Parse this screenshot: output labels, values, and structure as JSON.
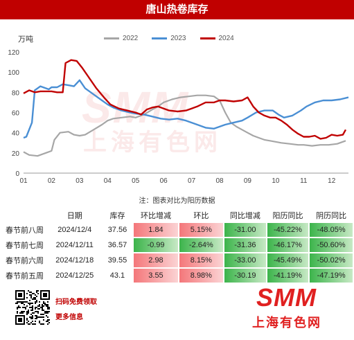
{
  "title": "唐山热卷库存",
  "unit": "万吨",
  "note": "注：图表对比为阳历数据",
  "chart_data": {
    "type": "line",
    "x_ticks": [
      "01",
      "02",
      "03",
      "04",
      "05",
      "06",
      "07",
      "08",
      "09",
      "10",
      "11",
      "12"
    ],
    "y_ticks": [
      "0",
      "20",
      "40",
      "60",
      "80",
      "100",
      "120"
    ],
    "ylim": [
      0,
      120
    ],
    "grid": false,
    "legend_position": "top",
    "series": [
      {
        "name": "2022",
        "color": "#a6a6a6",
        "values": [
          [
            1.0,
            21
          ],
          [
            1.2,
            18
          ],
          [
            1.5,
            17
          ],
          [
            1.8,
            20
          ],
          [
            2.0,
            22
          ],
          [
            2.1,
            33
          ],
          [
            2.3,
            40
          ],
          [
            2.6,
            41
          ],
          [
            2.8,
            38
          ],
          [
            3.0,
            37
          ],
          [
            3.2,
            38
          ],
          [
            3.5,
            43
          ],
          [
            3.8,
            48
          ],
          [
            4.0,
            52
          ],
          [
            4.2,
            54
          ],
          [
            4.5,
            55
          ],
          [
            4.8,
            56
          ],
          [
            5.0,
            55
          ],
          [
            5.3,
            58
          ],
          [
            5.6,
            63
          ],
          [
            5.8,
            66
          ],
          [
            6.0,
            70
          ],
          [
            6.3,
            73
          ],
          [
            6.6,
            75
          ],
          [
            6.9,
            76
          ],
          [
            7.2,
            77
          ],
          [
            7.5,
            77
          ],
          [
            7.8,
            76
          ],
          [
            8.0,
            72
          ],
          [
            8.2,
            60
          ],
          [
            8.4,
            50
          ],
          [
            8.6,
            46
          ],
          [
            8.8,
            43
          ],
          [
            9.0,
            40
          ],
          [
            9.2,
            37
          ],
          [
            9.4,
            35
          ],
          [
            9.6,
            33
          ],
          [
            9.8,
            32
          ],
          [
            10.0,
            31
          ],
          [
            10.2,
            30
          ],
          [
            10.5,
            29
          ],
          [
            10.8,
            28
          ],
          [
            11.0,
            28
          ],
          [
            11.3,
            27
          ],
          [
            11.6,
            28
          ],
          [
            11.9,
            28
          ],
          [
            12.2,
            29
          ],
          [
            12.5,
            32
          ]
        ]
      },
      {
        "name": "2023",
        "color": "#4a8fd4",
        "values": [
          [
            1.0,
            35
          ],
          [
            1.1,
            36
          ],
          [
            1.3,
            50
          ],
          [
            1.4,
            82
          ],
          [
            1.6,
            86
          ],
          [
            1.8,
            84
          ],
          [
            1.9,
            83
          ],
          [
            2.0,
            85
          ],
          [
            2.2,
            85
          ],
          [
            2.4,
            88
          ],
          [
            2.6,
            87
          ],
          [
            2.8,
            86
          ],
          [
            3.0,
            92
          ],
          [
            3.2,
            84
          ],
          [
            3.5,
            78
          ],
          [
            3.8,
            72
          ],
          [
            4.0,
            68
          ],
          [
            4.2,
            65
          ],
          [
            4.5,
            62
          ],
          [
            4.8,
            60
          ],
          [
            5.0,
            59
          ],
          [
            5.3,
            58
          ],
          [
            5.6,
            56
          ],
          [
            5.9,
            54
          ],
          [
            6.2,
            53
          ],
          [
            6.5,
            54
          ],
          [
            6.8,
            52
          ],
          [
            7.0,
            50
          ],
          [
            7.2,
            48
          ],
          [
            7.5,
            45
          ],
          [
            7.8,
            44
          ],
          [
            8.0,
            46
          ],
          [
            8.2,
            48
          ],
          [
            8.5,
            50
          ],
          [
            8.8,
            52
          ],
          [
            9.0,
            55
          ],
          [
            9.3,
            60
          ],
          [
            9.6,
            62
          ],
          [
            9.9,
            62
          ],
          [
            10.1,
            58
          ],
          [
            10.3,
            55
          ],
          [
            10.6,
            57
          ],
          [
            10.9,
            62
          ],
          [
            11.1,
            66
          ],
          [
            11.4,
            70
          ],
          [
            11.7,
            72
          ],
          [
            12.0,
            72
          ],
          [
            12.3,
            73
          ],
          [
            12.6,
            75
          ]
        ]
      },
      {
        "name": "2024",
        "color": "#c00000",
        "values": [
          [
            1.0,
            79
          ],
          [
            1.2,
            82
          ],
          [
            1.4,
            80
          ],
          [
            1.6,
            81
          ],
          [
            1.8,
            81
          ],
          [
            2.0,
            81
          ],
          [
            2.2,
            80
          ],
          [
            2.4,
            80
          ],
          [
            2.5,
            109
          ],
          [
            2.7,
            112
          ],
          [
            2.9,
            111
          ],
          [
            3.1,
            104
          ],
          [
            3.3,
            96
          ],
          [
            3.6,
            84
          ],
          [
            3.9,
            74
          ],
          [
            4.1,
            68
          ],
          [
            4.4,
            64
          ],
          [
            4.7,
            62
          ],
          [
            5.0,
            60
          ],
          [
            5.2,
            58
          ],
          [
            5.4,
            63
          ],
          [
            5.6,
            65
          ],
          [
            5.8,
            66
          ],
          [
            6.0,
            64
          ],
          [
            6.2,
            62
          ],
          [
            6.5,
            61
          ],
          [
            6.8,
            62
          ],
          [
            7.0,
            64
          ],
          [
            7.2,
            66
          ],
          [
            7.5,
            70
          ],
          [
            7.8,
            70
          ],
          [
            8.0,
            72
          ],
          [
            8.2,
            72
          ],
          [
            8.5,
            71
          ],
          [
            8.8,
            72
          ],
          [
            9.0,
            75
          ],
          [
            9.2,
            66
          ],
          [
            9.4,
            60
          ],
          [
            9.6,
            57
          ],
          [
            9.8,
            55
          ],
          [
            10.0,
            55
          ],
          [
            10.2,
            52
          ],
          [
            10.4,
            48
          ],
          [
            10.6,
            43
          ],
          [
            10.8,
            39
          ],
          [
            11.0,
            36
          ],
          [
            11.2,
            36
          ],
          [
            11.4,
            37
          ],
          [
            11.6,
            34
          ],
          [
            11.8,
            35
          ],
          [
            12.0,
            38
          ],
          [
            12.2,
            37
          ],
          [
            12.4,
            38
          ],
          [
            12.5,
            43
          ]
        ]
      }
    ]
  },
  "watermark": {
    "en": "SMM",
    "cn": "上海有色网"
  },
  "table": {
    "headers": [
      "",
      "日期",
      "库存",
      "环比增减",
      "环比",
      "同比增减",
      "阳历同比",
      "阴历同比"
    ],
    "rows": [
      {
        "label": "春节前八周",
        "date": "2024/12/4",
        "stock": "37.56",
        "chg": "1.84",
        "pct": "5.15%",
        "yoy_chg": "-31.00",
        "yoy_solar": "-45.22%",
        "yoy_lunar": "-48.05%",
        "up": true
      },
      {
        "label": "春节前七周",
        "date": "2024/12/11",
        "stock": "36.57",
        "chg": "-0.99",
        "pct": "-2.64%",
        "yoy_chg": "-31.36",
        "yoy_solar": "-46.17%",
        "yoy_lunar": "-50.60%",
        "up": false
      },
      {
        "label": "春节前六周",
        "date": "2024/12/18",
        "stock": "39.55",
        "chg": "2.98",
        "pct": "8.15%",
        "yoy_chg": "-33.00",
        "yoy_solar": "-45.49%",
        "yoy_lunar": "-50.02%",
        "up": true
      },
      {
        "label": "春节前五周",
        "date": "2024/12/25",
        "stock": "43.1",
        "chg": "3.55",
        "pct": "8.98%",
        "yoy_chg": "-30.19",
        "yoy_solar": "-41.19%",
        "yoy_lunar": "-47.19%",
        "up": true
      }
    ],
    "colors": {
      "up_strong": "#f4777a",
      "up_light": "#fbd3d4",
      "down": "#3cb44b",
      "down_light": "#c7e9c5"
    }
  },
  "footer": {
    "qr_line1": "扫码免费领取",
    "qr_line2": "更多信息",
    "logo_en": "SMM",
    "logo_cn": "上海有色网"
  }
}
